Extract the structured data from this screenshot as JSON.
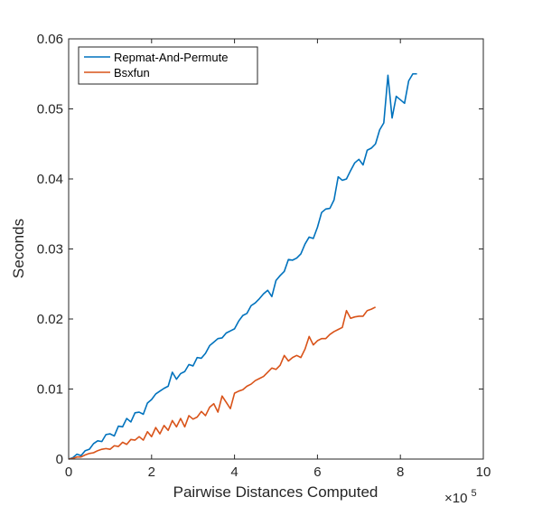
{
  "chart_data": {
    "type": "line",
    "xlabel": "Pairwise Distances Computed",
    "ylabel": "Seconds",
    "x_exponent": {
      "base": "×10",
      "power": "5"
    },
    "xlim": [
      0,
      10
    ],
    "ylim": [
      0,
      0.06
    ],
    "xticks": [
      0,
      2,
      4,
      6,
      8,
      10
    ],
    "xtick_labels": [
      "0",
      "2",
      "4",
      "6",
      "8",
      "10"
    ],
    "yticks": [
      0,
      0.01,
      0.02,
      0.03,
      0.04,
      0.05,
      0.06
    ],
    "ytick_labels": [
      "0",
      "0.01",
      "0.02",
      "0.03",
      "0.04",
      "0.05",
      "0.06"
    ],
    "grid": false,
    "box": true,
    "legend_position": "top-left",
    "series": [
      {
        "name": "Repmat-And-Permute",
        "color": "#0072bd",
        "points": [
          [
            0.0,
            0.0
          ],
          [
            0.1,
            0.0002
          ],
          [
            0.2,
            0.0007
          ],
          [
            0.3,
            0.0005
          ],
          [
            0.4,
            0.0012
          ],
          [
            0.5,
            0.0014
          ],
          [
            0.6,
            0.0022
          ],
          [
            0.7,
            0.0026
          ],
          [
            0.8,
            0.0025
          ],
          [
            0.9,
            0.0035
          ],
          [
            1.0,
            0.0036
          ],
          [
            1.1,
            0.0033
          ],
          [
            1.2,
            0.0047
          ],
          [
            1.3,
            0.0046
          ],
          [
            1.4,
            0.0058
          ],
          [
            1.5,
            0.0053
          ],
          [
            1.6,
            0.0066
          ],
          [
            1.7,
            0.0067
          ],
          [
            1.8,
            0.0064
          ],
          [
            1.9,
            0.008
          ],
          [
            2.0,
            0.0085
          ],
          [
            2.1,
            0.0093
          ],
          [
            2.2,
            0.0097
          ],
          [
            2.3,
            0.0101
          ],
          [
            2.4,
            0.0104
          ],
          [
            2.5,
            0.0124
          ],
          [
            2.6,
            0.0114
          ],
          [
            2.7,
            0.0122
          ],
          [
            2.8,
            0.0125
          ],
          [
            2.9,
            0.0135
          ],
          [
            3.0,
            0.0133
          ],
          [
            3.1,
            0.0145
          ],
          [
            3.2,
            0.0144
          ],
          [
            3.3,
            0.0151
          ],
          [
            3.4,
            0.0162
          ],
          [
            3.5,
            0.0167
          ],
          [
            3.6,
            0.0172
          ],
          [
            3.7,
            0.0173
          ],
          [
            3.8,
            0.018
          ],
          [
            3.9,
            0.0183
          ],
          [
            4.0,
            0.0186
          ],
          [
            4.1,
            0.0197
          ],
          [
            4.2,
            0.0205
          ],
          [
            4.3,
            0.0208
          ],
          [
            4.4,
            0.0219
          ],
          [
            4.5,
            0.0223
          ],
          [
            4.6,
            0.0229
          ],
          [
            4.7,
            0.0236
          ],
          [
            4.8,
            0.0241
          ],
          [
            4.9,
            0.0232
          ],
          [
            5.0,
            0.0255
          ],
          [
            5.1,
            0.0262
          ],
          [
            5.2,
            0.0268
          ],
          [
            5.3,
            0.0285
          ],
          [
            5.4,
            0.0284
          ],
          [
            5.5,
            0.0287
          ],
          [
            5.6,
            0.0293
          ],
          [
            5.7,
            0.0307
          ],
          [
            5.8,
            0.0317
          ],
          [
            5.9,
            0.0315
          ],
          [
            6.0,
            0.0331
          ],
          [
            6.1,
            0.0352
          ],
          [
            6.2,
            0.0357
          ],
          [
            6.3,
            0.0358
          ],
          [
            6.4,
            0.037
          ],
          [
            6.5,
            0.0403
          ],
          [
            6.6,
            0.0398
          ],
          [
            6.7,
            0.04
          ],
          [
            6.8,
            0.0412
          ],
          [
            6.9,
            0.0423
          ],
          [
            7.0,
            0.0428
          ],
          [
            7.1,
            0.042
          ],
          [
            7.2,
            0.0441
          ],
          [
            7.3,
            0.0444
          ],
          [
            7.4,
            0.045
          ],
          [
            7.5,
            0.047
          ],
          [
            7.6,
            0.048
          ],
          [
            7.7,
            0.0548
          ],
          [
            7.8,
            0.0487
          ],
          [
            7.9,
            0.0518
          ],
          [
            8.0,
            0.0513
          ],
          [
            8.1,
            0.0508
          ],
          [
            8.2,
            0.054
          ],
          [
            8.3,
            0.055
          ],
          [
            8.4,
            0.055
          ]
        ]
      },
      {
        "name": "Bsxfun",
        "color": "#d95319",
        "points": [
          [
            0.0,
            0.0
          ],
          [
            0.1,
            0.0001
          ],
          [
            0.2,
            0.0003
          ],
          [
            0.3,
            0.0003
          ],
          [
            0.4,
            0.0006
          ],
          [
            0.5,
            0.0008
          ],
          [
            0.6,
            0.0009
          ],
          [
            0.7,
            0.0012
          ],
          [
            0.8,
            0.0014
          ],
          [
            0.9,
            0.0015
          ],
          [
            1.0,
            0.0014
          ],
          [
            1.1,
            0.0019
          ],
          [
            1.2,
            0.0018
          ],
          [
            1.3,
            0.0024
          ],
          [
            1.4,
            0.0021
          ],
          [
            1.5,
            0.0028
          ],
          [
            1.6,
            0.0027
          ],
          [
            1.7,
            0.0032
          ],
          [
            1.8,
            0.0027
          ],
          [
            1.9,
            0.0039
          ],
          [
            2.0,
            0.0032
          ],
          [
            2.1,
            0.0045
          ],
          [
            2.2,
            0.0036
          ],
          [
            2.3,
            0.0048
          ],
          [
            2.4,
            0.0041
          ],
          [
            2.5,
            0.0055
          ],
          [
            2.6,
            0.0046
          ],
          [
            2.7,
            0.0058
          ],
          [
            2.8,
            0.0046
          ],
          [
            2.9,
            0.0062
          ],
          [
            3.0,
            0.0057
          ],
          [
            3.1,
            0.006
          ],
          [
            3.2,
            0.0068
          ],
          [
            3.3,
            0.0062
          ],
          [
            3.4,
            0.0074
          ],
          [
            3.5,
            0.0079
          ],
          [
            3.6,
            0.0067
          ],
          [
            3.7,
            0.009
          ],
          [
            3.8,
            0.0081
          ],
          [
            3.9,
            0.0072
          ],
          [
            4.0,
            0.0094
          ],
          [
            4.1,
            0.0097
          ],
          [
            4.2,
            0.0099
          ],
          [
            4.3,
            0.0104
          ],
          [
            4.4,
            0.0107
          ],
          [
            4.5,
            0.0112
          ],
          [
            4.6,
            0.0115
          ],
          [
            4.7,
            0.0118
          ],
          [
            4.8,
            0.0124
          ],
          [
            4.9,
            0.013
          ],
          [
            5.0,
            0.0128
          ],
          [
            5.1,
            0.0134
          ],
          [
            5.2,
            0.0148
          ],
          [
            5.3,
            0.014
          ],
          [
            5.4,
            0.0145
          ],
          [
            5.5,
            0.0148
          ],
          [
            5.6,
            0.0145
          ],
          [
            5.7,
            0.0157
          ],
          [
            5.8,
            0.0175
          ],
          [
            5.9,
            0.0163
          ],
          [
            6.0,
            0.0169
          ],
          [
            6.1,
            0.0172
          ],
          [
            6.2,
            0.0172
          ],
          [
            6.3,
            0.0178
          ],
          [
            6.4,
            0.0182
          ],
          [
            6.5,
            0.0185
          ],
          [
            6.6,
            0.0188
          ],
          [
            6.7,
            0.0212
          ],
          [
            6.8,
            0.0201
          ],
          [
            6.9,
            0.0203
          ],
          [
            7.0,
            0.0204
          ],
          [
            7.1,
            0.0204
          ],
          [
            7.2,
            0.0212
          ],
          [
            7.3,
            0.0214
          ],
          [
            7.4,
            0.0217
          ]
        ]
      }
    ]
  }
}
